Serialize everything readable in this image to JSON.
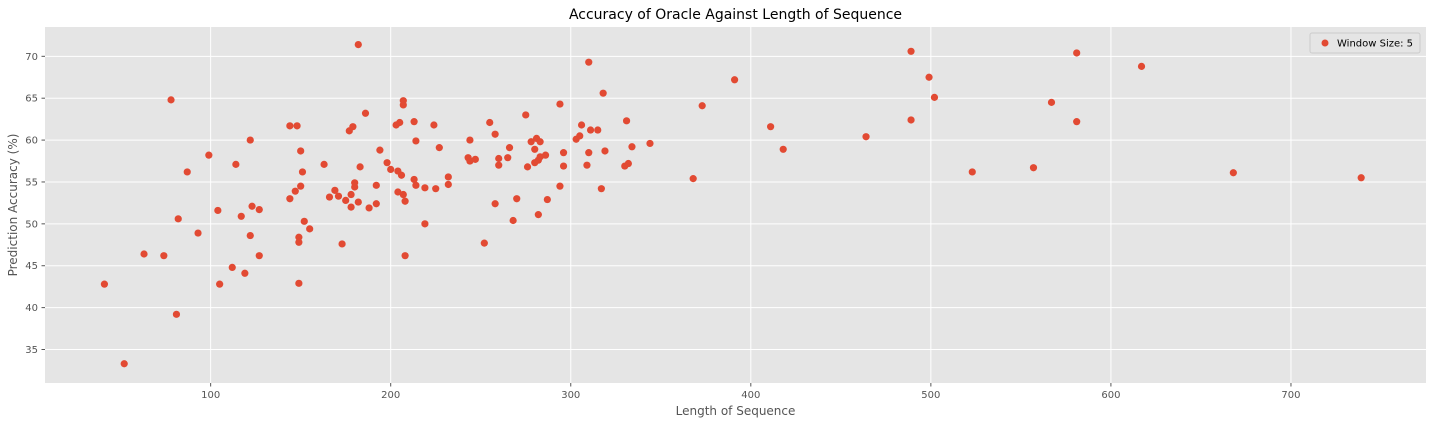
{
  "chart_data": {
    "type": "scatter",
    "title": "Accuracy of Oracle Against Length of Sequence",
    "xlabel": "Length of Sequence",
    "ylabel": "Prediction Accuracy (%)",
    "xlim": [
      8,
      775
    ],
    "ylim": [
      31,
      73.5
    ],
    "xticks": [
      100,
      200,
      300,
      400,
      500,
      600,
      700
    ],
    "yticks": [
      35,
      40,
      45,
      50,
      55,
      60,
      65,
      70
    ],
    "grid": true,
    "legend_position": "top-right",
    "colors": {
      "marker": "#e24a33",
      "background": "#e5e5e5",
      "grid": "#ffffff"
    },
    "series": [
      {
        "name": "Window Size: 5",
        "points": [
          [
            41,
            42.8
          ],
          [
            52,
            33.3
          ],
          [
            63,
            46.4
          ],
          [
            74,
            46.2
          ],
          [
            78,
            64.8
          ],
          [
            81,
            39.2
          ],
          [
            82,
            50.6
          ],
          [
            87,
            56.2
          ],
          [
            93,
            48.9
          ],
          [
            99,
            58.2
          ],
          [
            104,
            51.6
          ],
          [
            105,
            42.8
          ],
          [
            112,
            44.8
          ],
          [
            114,
            57.1
          ],
          [
            117,
            50.9
          ],
          [
            119,
            44.1
          ],
          [
            122,
            48.6
          ],
          [
            122,
            60.0
          ],
          [
            123,
            52.1
          ],
          [
            127,
            51.7
          ],
          [
            127,
            46.2
          ],
          [
            144,
            61.7
          ],
          [
            144,
            53.0
          ],
          [
            147,
            53.9
          ],
          [
            148,
            61.7
          ],
          [
            149,
            48.4
          ],
          [
            149,
            47.8
          ],
          [
            149,
            42.9
          ],
          [
            150,
            58.7
          ],
          [
            150,
            54.5
          ],
          [
            151,
            56.2
          ],
          [
            152,
            50.3
          ],
          [
            155,
            49.4
          ],
          [
            163,
            57.1
          ],
          [
            166,
            53.2
          ],
          [
            169,
            54.0
          ],
          [
            171,
            53.3
          ],
          [
            173,
            47.6
          ],
          [
            175,
            52.8
          ],
          [
            177,
            61.1
          ],
          [
            178,
            53.5
          ],
          [
            178,
            52.0
          ],
          [
            179,
            61.6
          ],
          [
            180,
            54.9
          ],
          [
            180,
            54.4
          ],
          [
            182,
            71.4
          ],
          [
            182,
            52.6
          ],
          [
            183,
            56.8
          ],
          [
            186,
            63.2
          ],
          [
            188,
            51.9
          ],
          [
            192,
            52.4
          ],
          [
            192,
            54.6
          ],
          [
            194,
            58.8
          ],
          [
            198,
            57.3
          ],
          [
            200,
            56.5
          ],
          [
            203,
            61.8
          ],
          [
            204,
            56.3
          ],
          [
            204,
            53.8
          ],
          [
            205,
            62.1
          ],
          [
            206,
            55.8
          ],
          [
            207,
            64.7
          ],
          [
            207,
            64.2
          ],
          [
            207,
            53.5
          ],
          [
            208,
            52.7
          ],
          [
            208,
            46.2
          ],
          [
            213,
            62.2
          ],
          [
            213,
            55.3
          ],
          [
            214,
            59.9
          ],
          [
            214,
            54.6
          ],
          [
            219,
            54.3
          ],
          [
            219,
            50.0
          ],
          [
            224,
            61.8
          ],
          [
            225,
            54.2
          ],
          [
            227,
            59.1
          ],
          [
            232,
            55.6
          ],
          [
            232,
            54.7
          ],
          [
            243,
            57.9
          ],
          [
            244,
            57.5
          ],
          [
            244,
            60.0
          ],
          [
            247,
            57.7
          ],
          [
            252,
            47.7
          ],
          [
            255,
            62.1
          ],
          [
            258,
            60.7
          ],
          [
            258,
            52.4
          ],
          [
            260,
            57.0
          ],
          [
            260,
            57.8
          ],
          [
            265,
            57.9
          ],
          [
            266,
            59.1
          ],
          [
            268,
            50.4
          ],
          [
            270,
            53.0
          ],
          [
            275,
            63.0
          ],
          [
            276,
            56.8
          ],
          [
            278,
            59.8
          ],
          [
            280,
            57.3
          ],
          [
            280,
            58.9
          ],
          [
            281,
            60.2
          ],
          [
            282,
            57.6
          ],
          [
            282,
            51.1
          ],
          [
            283,
            59.8
          ],
          [
            283,
            58.0
          ],
          [
            286,
            58.2
          ],
          [
            287,
            52.9
          ],
          [
            294,
            64.3
          ],
          [
            294,
            54.5
          ],
          [
            296,
            58.5
          ],
          [
            296,
            56.9
          ],
          [
            303,
            60.1
          ],
          [
            305,
            60.5
          ],
          [
            306,
            61.8
          ],
          [
            309,
            57.0
          ],
          [
            310,
            58.5
          ],
          [
            310,
            69.3
          ],
          [
            311,
            61.2
          ],
          [
            315,
            61.2
          ],
          [
            317,
            54.2
          ],
          [
            318,
            65.6
          ],
          [
            319,
            58.7
          ],
          [
            330,
            56.9
          ],
          [
            331,
            62.3
          ],
          [
            332,
            57.2
          ],
          [
            334,
            59.2
          ],
          [
            344,
            59.6
          ],
          [
            368,
            55.4
          ],
          [
            373,
            64.1
          ],
          [
            391,
            67.2
          ],
          [
            411,
            61.6
          ],
          [
            418,
            58.9
          ],
          [
            464,
            60.4
          ],
          [
            489,
            70.6
          ],
          [
            489,
            62.4
          ],
          [
            499,
            67.5
          ],
          [
            502,
            65.1
          ],
          [
            523,
            56.2
          ],
          [
            557,
            56.7
          ],
          [
            567,
            64.5
          ],
          [
            581,
            70.4
          ],
          [
            581,
            62.2
          ],
          [
            617,
            68.8
          ],
          [
            668,
            56.1
          ],
          [
            739,
            55.5
          ]
        ]
      }
    ]
  }
}
